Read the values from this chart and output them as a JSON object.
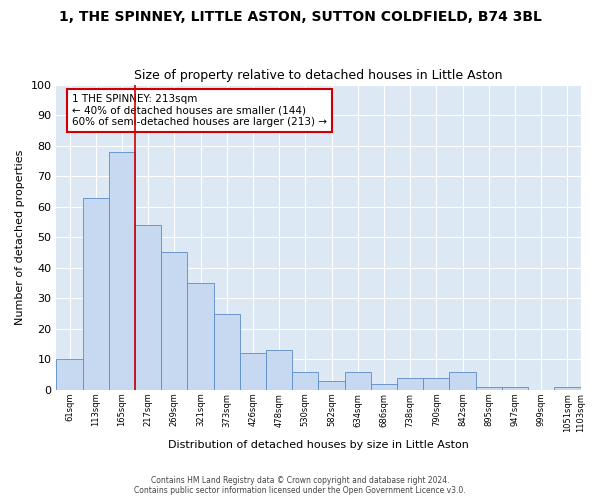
{
  "title": "1, THE SPINNEY, LITTLE ASTON, SUTTON COLDFIELD, B74 3BL",
  "subtitle": "Size of property relative to detached houses in Little Aston",
  "xlabel": "Distribution of detached houses by size in Little Aston",
  "ylabel": "Number of detached properties",
  "bar_values": [
    10,
    63,
    78,
    54,
    45,
    35,
    25,
    12,
    13,
    6,
    3,
    6,
    2,
    4,
    4,
    6,
    1,
    1,
    0,
    1
  ],
  "bin_left_edges": [
    0,
    1,
    2,
    3,
    4,
    5,
    6,
    7,
    8,
    9,
    10,
    11,
    12,
    13,
    14,
    15,
    16,
    17,
    18,
    19
  ],
  "bin_labels": [
    "61sqm",
    "113sqm",
    "165sqm",
    "217sqm",
    "269sqm",
    "321sqm",
    "373sqm",
    "426sqm",
    "478sqm",
    "530sqm",
    "582sqm",
    "634sqm",
    "686sqm",
    "738sqm",
    "790sqm",
    "842sqm",
    "895sqm",
    "947sqm",
    "999sqm",
    "1051sqm",
    "1103sqm"
  ],
  "bar_color": "#c6d9f0",
  "bar_edge_color": "#5b8cc8",
  "vline_x": 3,
  "vline_color": "#cc0000",
  "annotation_text": "1 THE SPINNEY: 213sqm\n← 40% of detached houses are smaller (144)\n60% of semi-detached houses are larger (213) →",
  "annotation_box_facecolor": "#ffffff",
  "annotation_box_edgecolor": "#cc0000",
  "ylim": [
    0,
    100
  ],
  "yticks": [
    0,
    10,
    20,
    30,
    40,
    50,
    60,
    70,
    80,
    90,
    100
  ],
  "background_color": "#dce9f5",
  "footer_line1": "Contains HM Land Registry data © Crown copyright and database right 2024.",
  "footer_line2": "Contains public sector information licensed under the Open Government Licence v3.0.",
  "title_fontsize": 10,
  "subtitle_fontsize": 9,
  "n_bars": 20
}
